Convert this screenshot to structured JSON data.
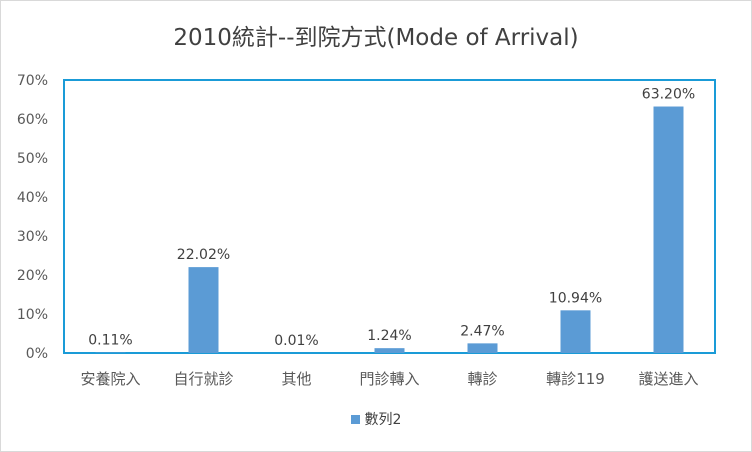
{
  "chart_data": {
    "type": "bar",
    "title": "2010統計--到院方式(Mode of Arrival)",
    "categories": [
      "安養院入",
      "自行就診",
      "其他",
      "門診轉入",
      "轉診",
      "轉診119",
      "護送進入"
    ],
    "series": [
      {
        "name": "數列2",
        "values": [
          0.11,
          22.02,
          0.01,
          1.24,
          2.47,
          10.94,
          63.2
        ],
        "labels": [
          "0.11%",
          "22.02%",
          "0.01%",
          "1.24%",
          "2.47%",
          "10.94%",
          "63.20%"
        ],
        "color": "#5b9bd5"
      }
    ],
    "ylim": [
      0,
      70
    ],
    "yticks": [
      "0%",
      "10%",
      "20%",
      "30%",
      "40%",
      "50%",
      "60%",
      "70%"
    ],
    "grid": false,
    "legend": "bottom",
    "plot_border_color": "#1a9bd7"
  }
}
